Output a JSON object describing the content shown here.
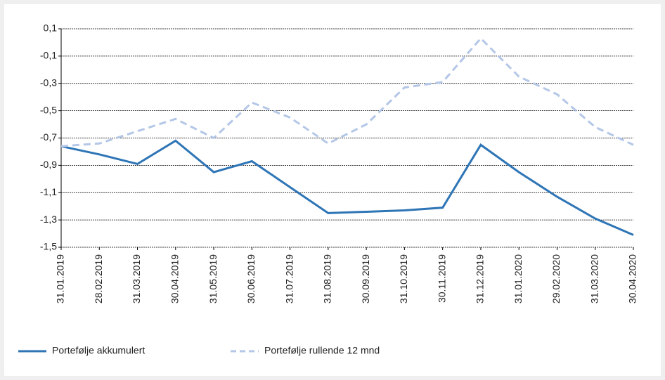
{
  "chart_data": {
    "type": "line",
    "categories": [
      "31.01.2019",
      "28.02.2019",
      "31.03.2019",
      "30.04.2019",
      "31.05.2019",
      "30.06.2019",
      "31.07.2019",
      "31.08.2019",
      "30.09.2019",
      "31.10.2019",
      "30.11.2019",
      "31.12.2019",
      "31.01.2020",
      "29.02.2020",
      "31.03.2020",
      "30.04.2020"
    ],
    "series": [
      {
        "name": "Portefølje akkumulert",
        "color": "#2e75b6",
        "dash": false,
        "values": [
          -0.76,
          -0.82,
          -0.89,
          -0.72,
          -0.95,
          -0.87,
          -1.06,
          -1.25,
          -1.24,
          -1.23,
          -1.21,
          -0.75,
          -0.95,
          -1.13,
          -1.29,
          -1.41
        ]
      },
      {
        "name": "Portefølje rullende 12 mnd",
        "color": "#b4c7e7",
        "dash": true,
        "values": [
          -0.76,
          -0.74,
          -0.65,
          -0.56,
          -0.7,
          -0.44,
          -0.55,
          -0.74,
          -0.6,
          -0.33,
          -0.29,
          0.03,
          -0.25,
          -0.38,
          -0.62,
          -0.75
        ]
      }
    ],
    "ylim": [
      -1.5,
      0.1
    ],
    "yticks": [
      {
        "value": -1.5,
        "label": "-1,5"
      },
      {
        "value": -1.3,
        "label": "-1,3"
      },
      {
        "value": -1.1,
        "label": "-1,1"
      },
      {
        "value": -0.9,
        "label": "-0,9"
      },
      {
        "value": -0.7,
        "label": "-0,7"
      },
      {
        "value": -0.5,
        "label": "-0,5"
      },
      {
        "value": -0.3,
        "label": "-0,3"
      },
      {
        "value": -0.1,
        "label": "-0,1"
      },
      {
        "value": 0.1,
        "label": "0,1"
      }
    ],
    "grid": true
  }
}
